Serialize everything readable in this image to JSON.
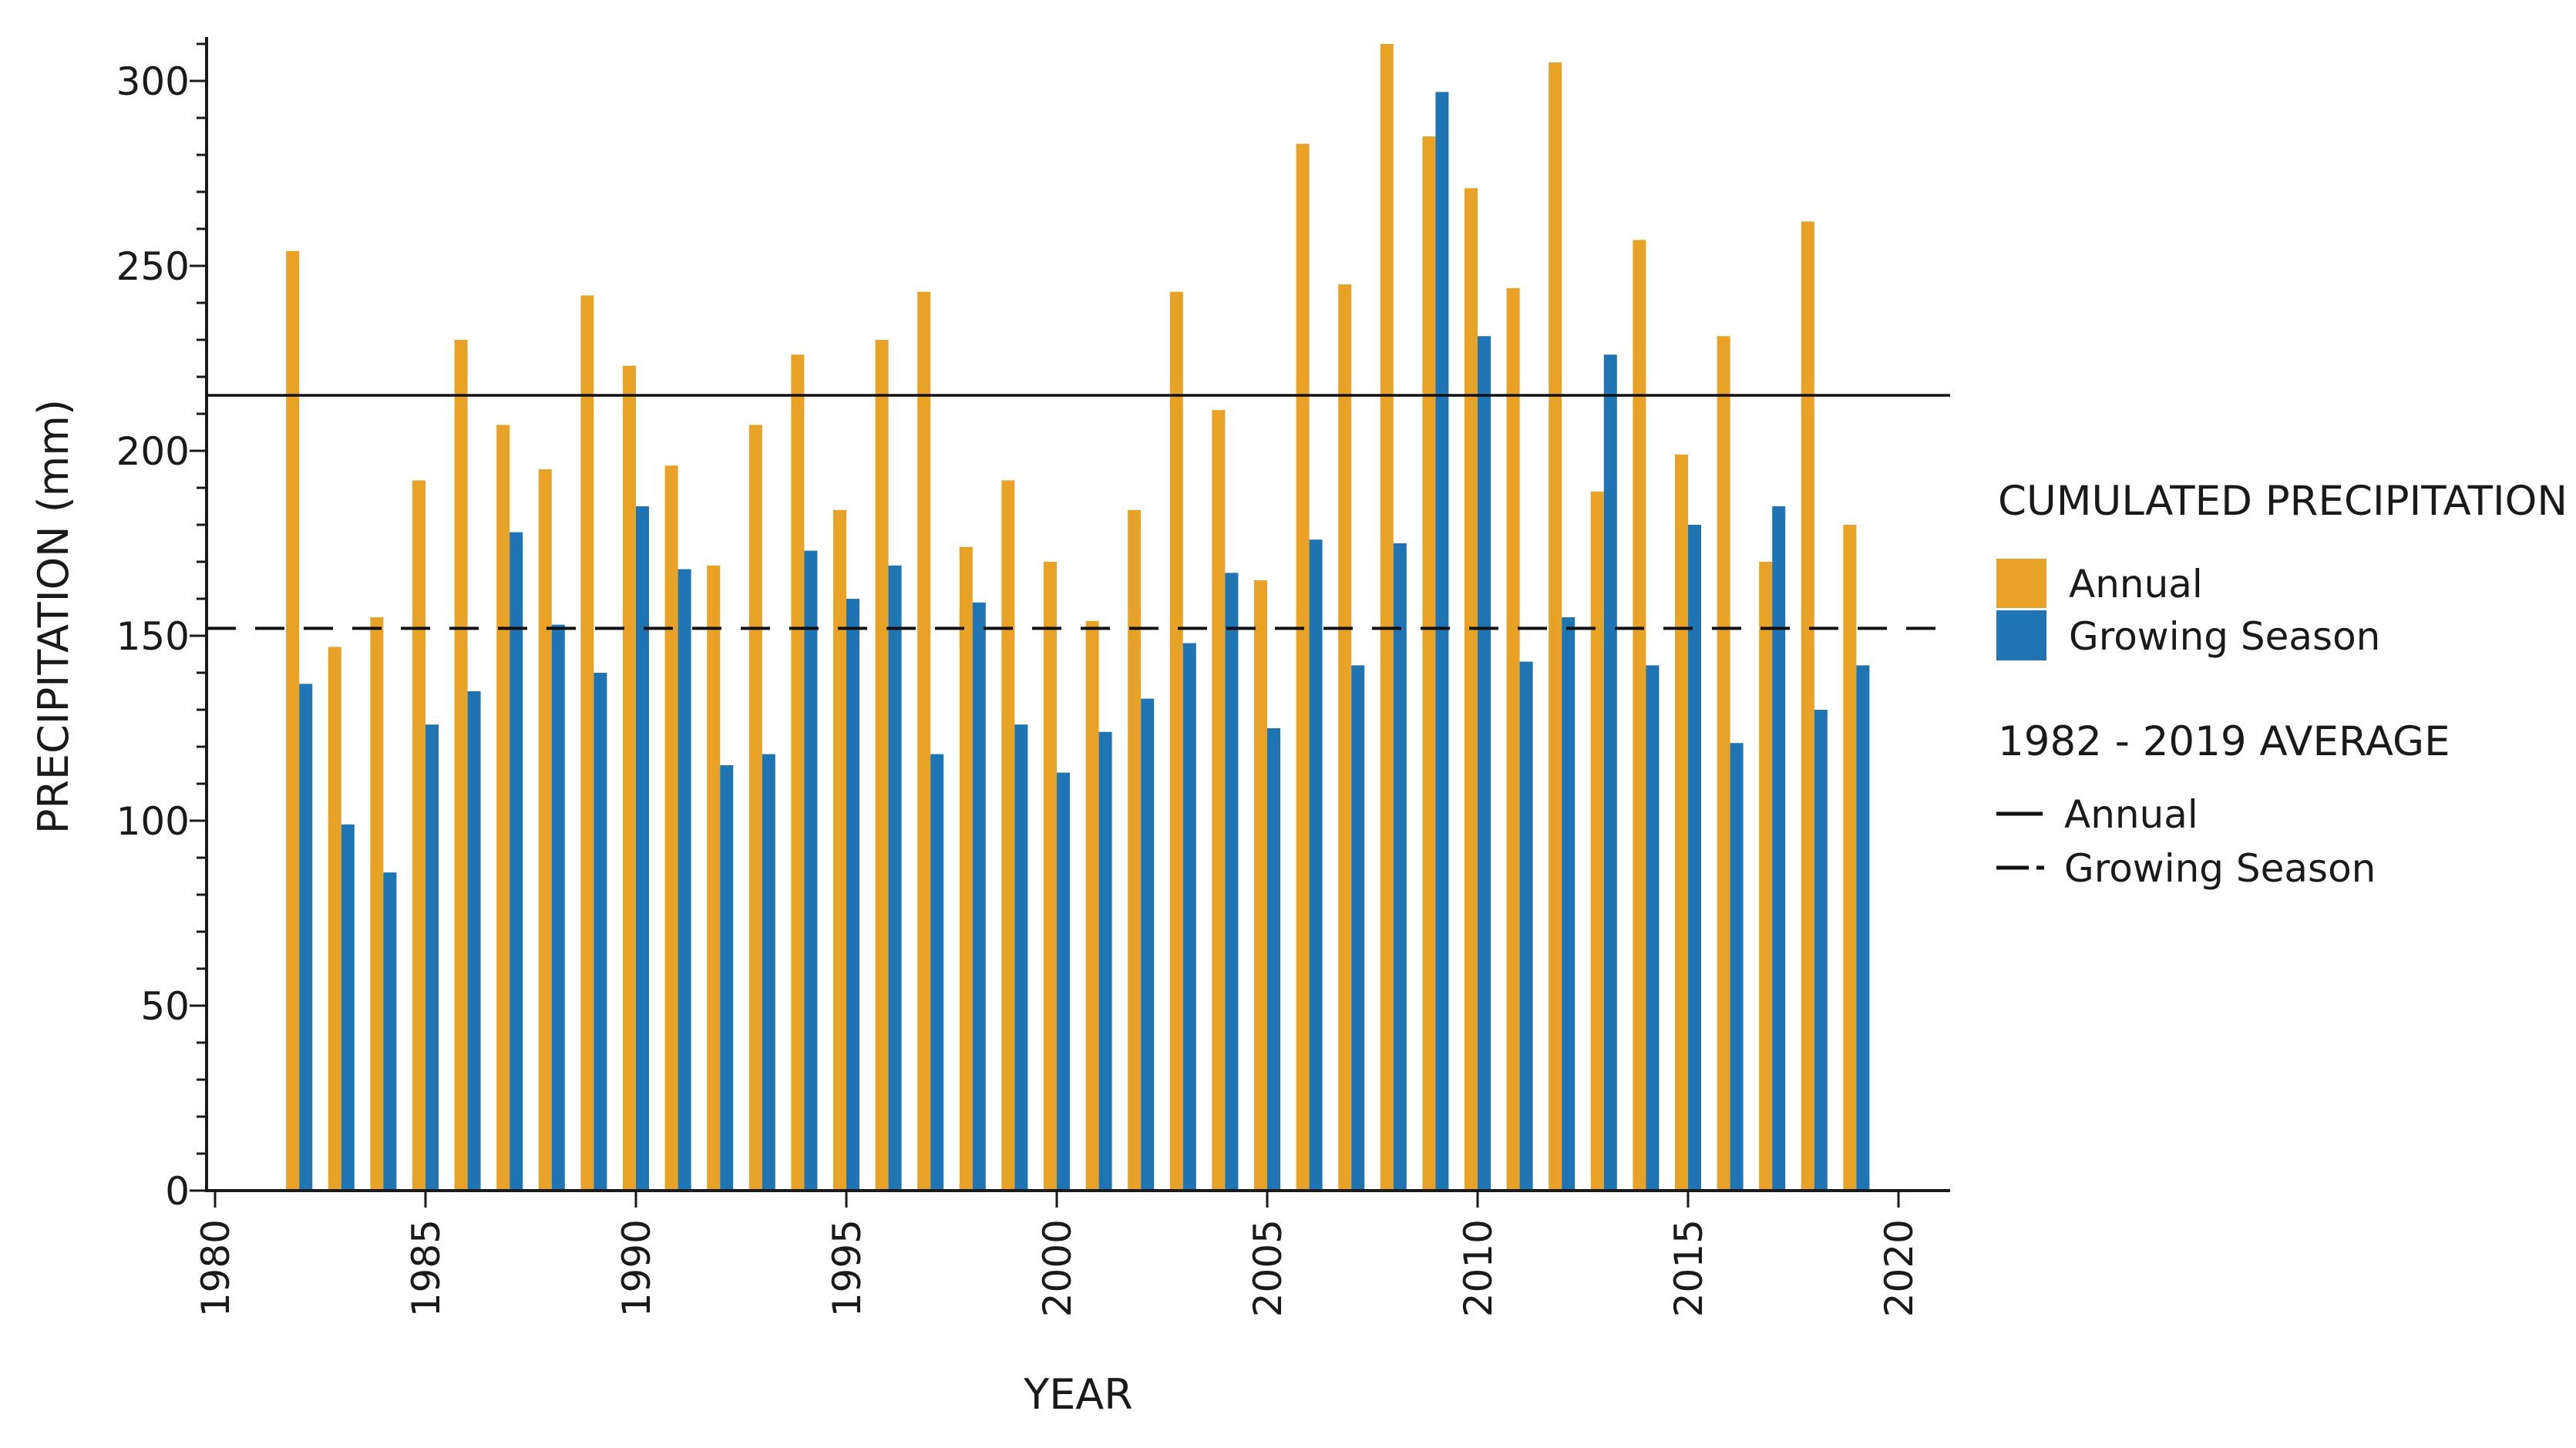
{
  "colors": {
    "annual_bar": "#E8A226",
    "growing_bar": "#1F74B4",
    "axis": "#1a1a1a",
    "avg_line": "#111111",
    "background": "#ffffff"
  },
  "chart_data": {
    "type": "bar",
    "title": "",
    "xlabel": "YEAR",
    "ylabel": "PRECIPITATION (mm)",
    "x": [
      1982,
      1983,
      1984,
      1985,
      1986,
      1987,
      1988,
      1989,
      1990,
      1991,
      1992,
      1993,
      1994,
      1995,
      1996,
      1997,
      1998,
      1999,
      2000,
      2001,
      2002,
      2003,
      2004,
      2005,
      2006,
      2007,
      2008,
      2009,
      2010,
      2011,
      2012,
      2013,
      2014,
      2015,
      2016,
      2017,
      2018,
      2019
    ],
    "series": [
      {
        "name": "Annual",
        "values": [
          254,
          147,
          155,
          192,
          230,
          207,
          195,
          242,
          223,
          196,
          169,
          207,
          226,
          184,
          230,
          243,
          174,
          192,
          170,
          154,
          184,
          243,
          211,
          165,
          283,
          245,
          310,
          285,
          271,
          244,
          305,
          189,
          257,
          199,
          231,
          170,
          262,
          180
        ]
      },
      {
        "name": "Growing Season",
        "values": [
          137,
          99,
          86,
          126,
          135,
          178,
          153,
          140,
          185,
          168,
          115,
          118,
          173,
          160,
          169,
          118,
          159,
          126,
          113,
          124,
          133,
          148,
          167,
          125,
          176,
          142,
          175,
          297,
          231,
          143,
          155,
          226,
          142,
          180,
          121,
          185,
          130,
          142
        ]
      }
    ],
    "average_lines": [
      {
        "name": "Annual",
        "value": 215,
        "style": "solid"
      },
      {
        "name": "Growing Season",
        "value": 152,
        "style": "dashed"
      }
    ],
    "ylim": [
      0,
      312
    ],
    "yticks": [
      0,
      50,
      100,
      150,
      200,
      250,
      300
    ],
    "y_minor_step": 10,
    "xticks": [
      1980,
      1985,
      1990,
      1995,
      2000,
      2005,
      2010,
      2015,
      2020
    ],
    "grid": false,
    "legend_position": "right"
  },
  "legend": {
    "bars_title": "CUMULATED PRECIPITATION",
    "bars_items": [
      "Annual",
      "Growing Season"
    ],
    "lines_title": "1982 - 2019 AVERAGE",
    "lines_items": [
      "Annual",
      "Growing Season"
    ]
  },
  "axis": {
    "x_label": "YEAR",
    "y_label": "PRECIPITATION (mm)"
  }
}
